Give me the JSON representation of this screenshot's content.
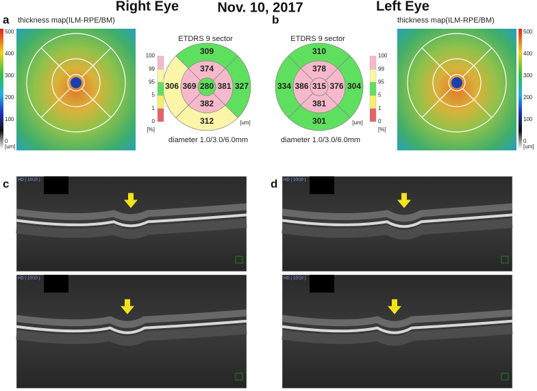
{
  "header": {
    "right_eye": "Right Eye",
    "date": "Nov. 10, 2017",
    "left_eye": "Left Eye"
  },
  "panels": {
    "a": "a",
    "b": "b",
    "c": "c",
    "d": "d"
  },
  "map_right": {
    "title": "thickness map(ILM-RPE/BM)",
    "scale": [
      500,
      400,
      300,
      200,
      100,
      0
    ],
    "unit": "[um]"
  },
  "map_left": {
    "title": "thickness map(ILM-RPE/BM)",
    "scale": [
      500,
      400,
      300,
      200,
      100,
      0
    ],
    "unit": "[um]"
  },
  "etdrs_right": {
    "title": "ETDRS 9 sector",
    "legend": [
      100,
      99,
      95,
      5,
      1,
      0
    ],
    "legend_unit": "[%]",
    "unit": "[um]",
    "center": {
      "value": 280,
      "color": "#5ee05e"
    },
    "inner": [
      {
        "value": 374,
        "color": "#f6b9cb"
      },
      {
        "value": 381,
        "color": "#f6b9cb"
      },
      {
        "value": 382,
        "color": "#f6b9cb"
      },
      {
        "value": 369,
        "color": "#f6b9cb"
      }
    ],
    "outer": [
      {
        "value": 309,
        "color": "#5ee05e"
      },
      {
        "value": 327,
        "color": "#5ee05e"
      },
      {
        "value": 312,
        "color": "#fbf5a8"
      },
      {
        "value": 306,
        "color": "#fbf5a8"
      }
    ],
    "caption": "diameter 1.0/3.0/6.0mm"
  },
  "etdrs_left": {
    "title": "ETDRS 9 sector",
    "legend": [
      100,
      99,
      95,
      5,
      1,
      0
    ],
    "legend_unit": "[%]",
    "unit": "[um]",
    "center": {
      "value": 315,
      "color": "#f6b9cb"
    },
    "inner": [
      {
        "value": 378,
        "color": "#f6b9cb"
      },
      {
        "value": 376,
        "color": "#f6b9cb"
      },
      {
        "value": 381,
        "color": "#f6b9cb"
      },
      {
        "value": 386,
        "color": "#f6b9cb"
      }
    ],
    "outer": [
      {
        "value": 310,
        "color": "#5ee05e"
      },
      {
        "value": 304,
        "color": "#5ee05e"
      },
      {
        "value": 301,
        "color": "#5ee05e"
      },
      {
        "value": 334,
        "color": "#5ee05e"
      }
    ],
    "caption": "diameter 1.0/3.0/6.0mm"
  },
  "scans": {
    "c_top": "HD ( 10/10 )",
    "c_bottom": "HD ( 10/10 )",
    "d_top": "HD ( 10/10 )",
    "d_bottom": "HD ( 10/10 )"
  }
}
